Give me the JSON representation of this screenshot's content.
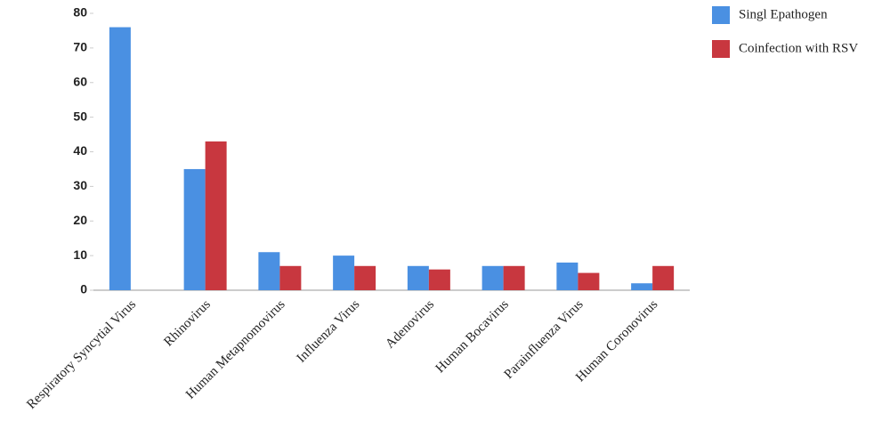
{
  "chart_data": {
    "type": "bar",
    "categories": [
      "Respiratory Syncytial Virus",
      "Rhinovirus",
      "Human Metapnomovirus",
      "Influenza Virus",
      "Adenovirus",
      "Human Bocavirus",
      "Parainfluenza Virus",
      "Human Coronovirus"
    ],
    "series": [
      {
        "name": "Singl Epathogen",
        "color": "#4a90e2",
        "values": [
          76,
          35,
          11,
          10,
          7,
          7,
          8,
          2
        ]
      },
      {
        "name": "Coinfection with RSV",
        "color": "#c8373f",
        "values": [
          null,
          43,
          7,
          7,
          6,
          7,
          5,
          7
        ]
      }
    ],
    "ylim": [
      0,
      80
    ],
    "yticks": [
      0,
      10,
      20,
      30,
      40,
      50,
      60,
      70,
      80
    ],
    "legend": "top-right"
  }
}
